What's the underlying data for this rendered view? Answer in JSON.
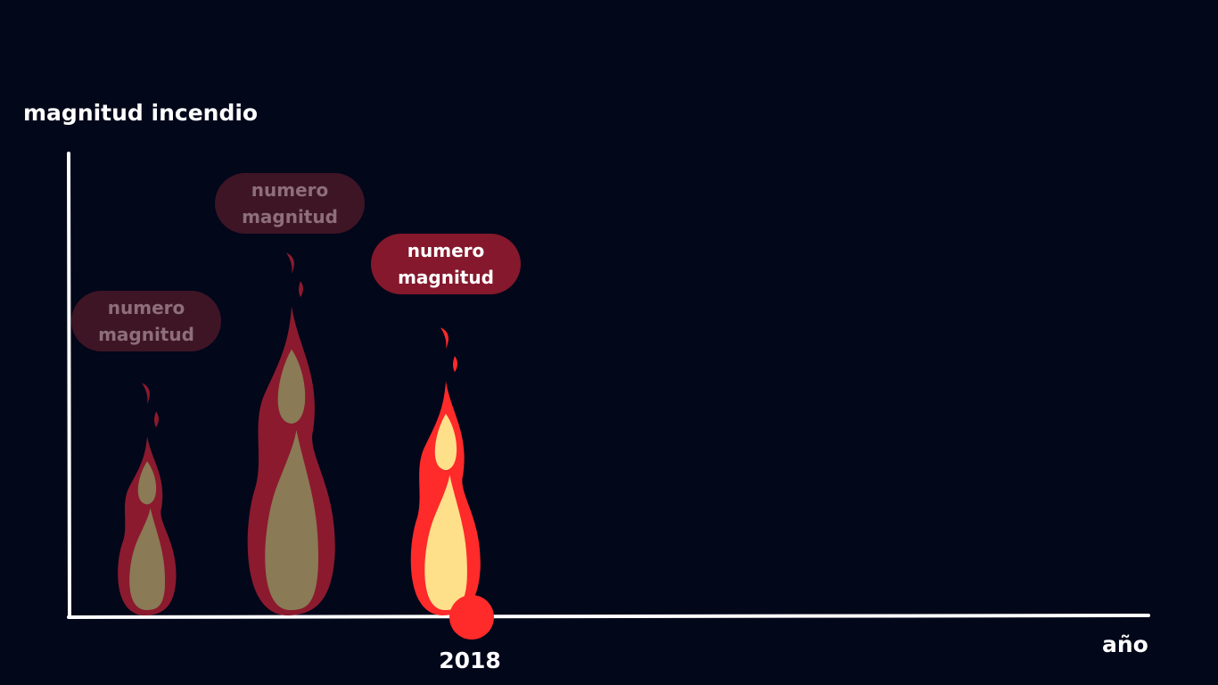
{
  "chart_data": {
    "type": "bar",
    "ylabel": "magnitud incendio",
    "xlabel": "año",
    "x_tick_labels": [
      "2018"
    ],
    "highlighted_index": 2,
    "bars": [
      {
        "label_line1": "numero",
        "label_line2": "magnitud",
        "relative_height": 0.55,
        "state": "faded"
      },
      {
        "label_line1": "numero",
        "label_line2": "magnitud",
        "relative_height": 0.95,
        "state": "faded"
      },
      {
        "label_line1": "numero",
        "label_line2": "magnitud",
        "relative_height": 0.72,
        "state": "active"
      }
    ],
    "colors": {
      "background": "#02071a",
      "axis": "#ffffff",
      "flame_faded_outer": "#8b1a2e",
      "flame_faded_inner": "#8a7a55",
      "flame_active_outer": "#ff2a2a",
      "flame_active_inner": "#ffe08a",
      "marker": "#ff2a2a"
    }
  }
}
